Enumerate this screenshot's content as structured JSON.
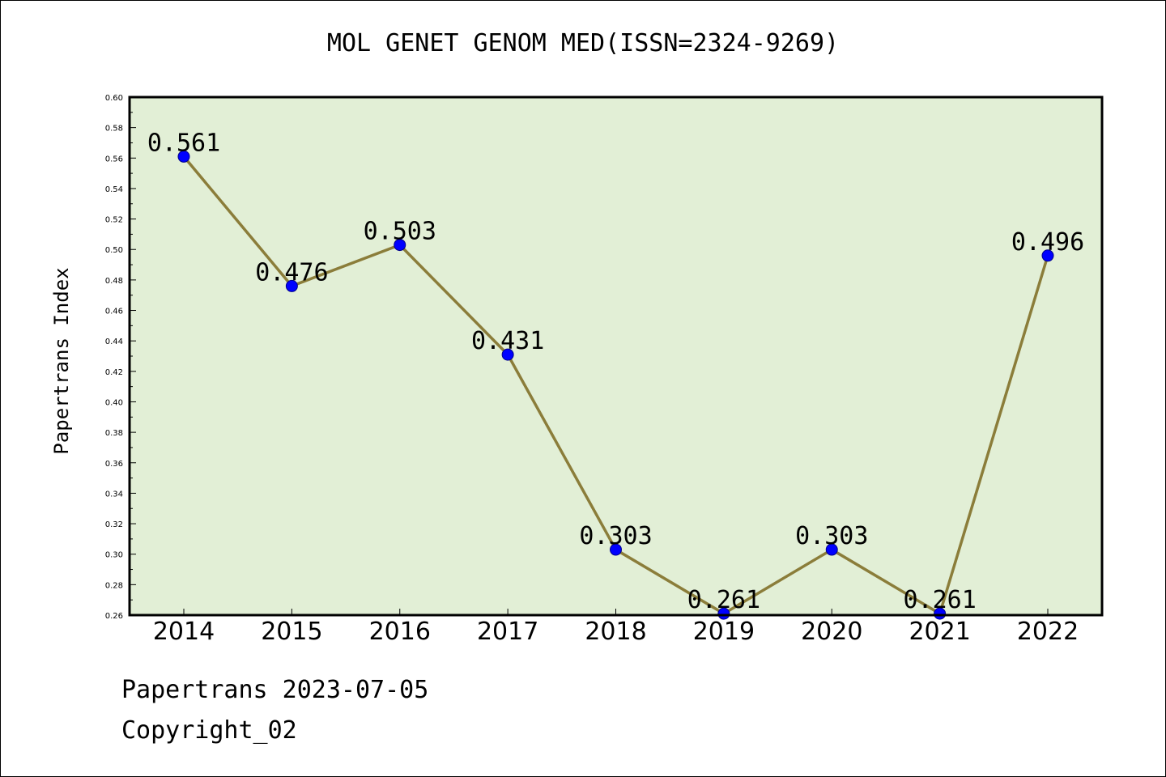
{
  "chart_data": {
    "type": "line",
    "title": "MOL GENET GENOM MED(ISSN=2324-9269)",
    "xlabel": "",
    "ylabel": "Papertrans Index",
    "categories": [
      "2014",
      "2015",
      "2016",
      "2017",
      "2018",
      "2019",
      "2020",
      "2021",
      "2022"
    ],
    "series": [
      {
        "values": [
          0.561,
          0.476,
          0.503,
          0.431,
          0.303,
          0.261,
          0.303,
          0.261,
          0.496
        ],
        "data_labels": [
          "0.561",
          "0.476",
          "0.503",
          "0.431",
          "0.303",
          "0.261",
          "0.303",
          "0.261",
          "0.496"
        ]
      }
    ],
    "ylim": [
      0.26,
      0.6
    ],
    "yticks": [
      "0.26",
      "0.28",
      "0.30",
      "0.32",
      "0.34",
      "0.36",
      "0.38",
      "0.40",
      "0.42",
      "0.44",
      "0.46",
      "0.48",
      "0.50",
      "0.52",
      "0.54",
      "0.56",
      "0.58",
      "0.60"
    ],
    "grid": false,
    "legend": "none",
    "colors": {
      "plot_background": "#e2efd6",
      "line": "#8b7d3a",
      "marker_fill": "#0000ff",
      "marker_edge": "#00008b",
      "axes": "#000000"
    }
  },
  "footer": {
    "date_text": "Papertrans 2023-07-05",
    "copyright_text": "Copyright_02"
  }
}
